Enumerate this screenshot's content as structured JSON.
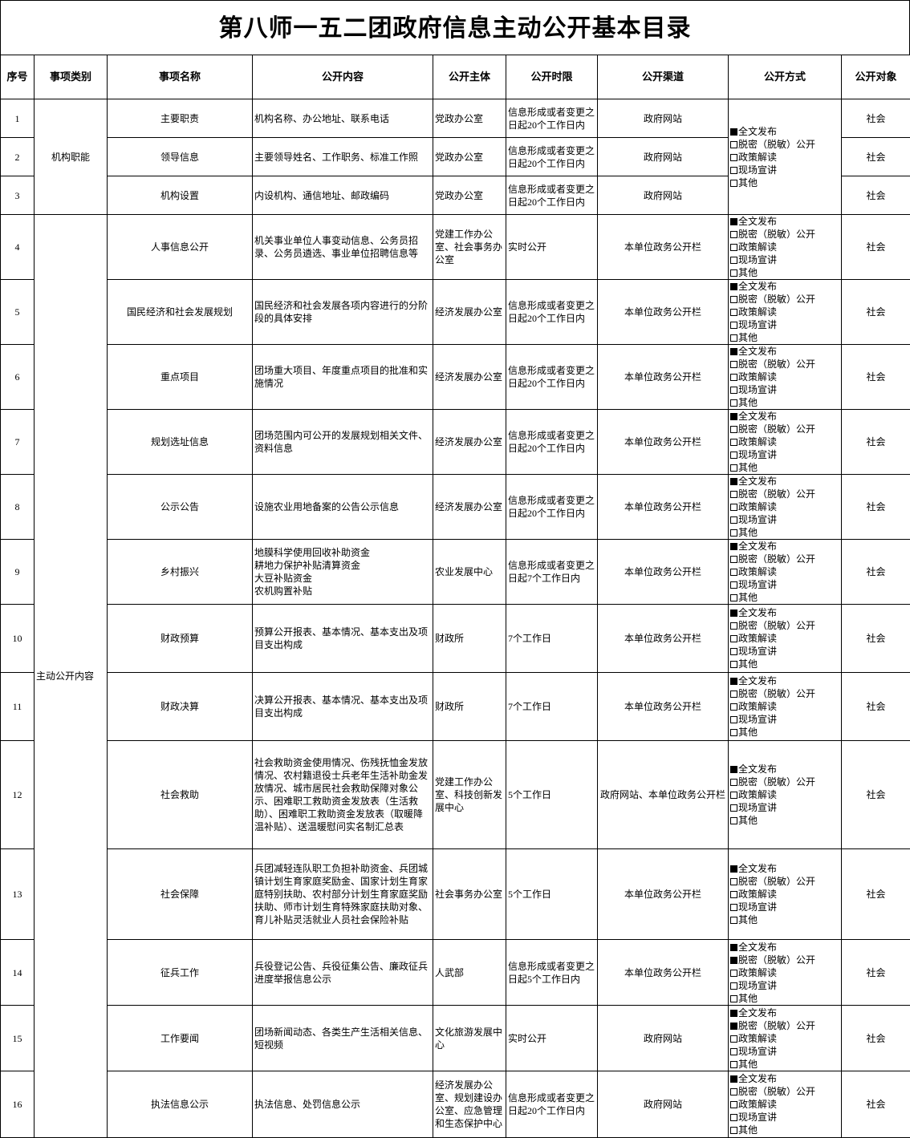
{
  "title": "第八师一五二团政府信息主动公开基本目录",
  "headers": [
    "序号",
    "事项类别",
    "事项名称",
    "公开内容",
    "公开主体",
    "公开时限",
    "公开渠道",
    "公开方式",
    "公开对象"
  ],
  "method_options": [
    "全文发布",
    "脱密（脱敏）公开",
    "政策解读",
    "现场宣讲",
    "其他"
  ],
  "categories": [
    {
      "label": "机构职能",
      "rows": 3
    },
    {
      "label": "主动公开内容",
      "rows": 13
    }
  ],
  "rows": [
    {
      "no": "1",
      "name": "主要职责",
      "content": "机构名称、办公地址、联系电话",
      "subject": "党政办公室",
      "limit": "信息形成或者变更之日起20个工作日内",
      "channel": "政府网站",
      "methods": [
        true,
        false,
        false,
        false,
        false
      ],
      "target": "社会"
    },
    {
      "no": "2",
      "name": "领导信息",
      "content": "主要领导姓名、工作职务、标准工作照",
      "subject": "党政办公室",
      "limit": "信息形成或者变更之日起20个工作日内",
      "channel": "政府网站",
      "methods": null,
      "target": "社会"
    },
    {
      "no": "3",
      "name": "机构设置",
      "content": "内设机构、通信地址、邮政编码",
      "subject": "党政办公室",
      "limit": "信息形成或者变更之日起20个工作日内",
      "channel": "政府网站",
      "methods": null,
      "target": "社会"
    },
    {
      "no": "4",
      "name": "人事信息公开",
      "content": "机关事业单位人事变动信息、公务员招录、公务员遴选、事业单位招聘信息等",
      "subject": "党建工作办公室、社会事务办公室",
      "limit": "实时公开",
      "channel": "本单位政务公开栏",
      "methods": [
        true,
        false,
        false,
        false,
        false
      ],
      "target": "社会"
    },
    {
      "no": "5",
      "name": "国民经济和社会发展规划",
      "content": "国民经济和社会发展各项内容进行的分阶段的具体安排",
      "subject": "经济发展办公室",
      "limit": "信息形成或者变更之日起20个工作日内",
      "channel": "本单位政务公开栏",
      "methods": [
        true,
        false,
        false,
        false,
        false
      ],
      "target": "社会"
    },
    {
      "no": "6",
      "name": "重点项目",
      "content": "团场重大项目、年度重点项目的批准和实施情况",
      "subject": "经济发展办公室",
      "limit": "信息形成或者变更之日起20个工作日内",
      "channel": "本单位政务公开栏",
      "methods": [
        true,
        false,
        false,
        false,
        false
      ],
      "target": "社会"
    },
    {
      "no": "7",
      "name": "规划选址信息",
      "content": "团场范围内可公开的发展规划相关文件、资料信息",
      "subject": "经济发展办公室",
      "limit": "信息形成或者变更之日起20个工作日内",
      "channel": "本单位政务公开栏",
      "methods": [
        true,
        false,
        false,
        false,
        false
      ],
      "target": "社会"
    },
    {
      "no": "8",
      "name": "公示公告",
      "content": "设施农业用地备案的公告公示信息",
      "subject": "经济发展办公室",
      "limit": "信息形成或者变更之日起20个工作日内",
      "channel": "本单位政务公开栏",
      "methods": [
        true,
        false,
        false,
        false,
        false
      ],
      "target": "社会"
    },
    {
      "no": "9",
      "name": "乡村振兴",
      "content": "地膜科学使用回收补助资金\n耕地力保护补贴清算资金\n大豆补贴资金\n农机购置补贴",
      "subject": "农业发展中心",
      "limit": "信息形成或者变更之日起7个工作日内",
      "channel": "本单位政务公开栏",
      "methods": [
        true,
        false,
        false,
        false,
        false
      ],
      "target": "社会"
    },
    {
      "no": "10",
      "name": "财政预算",
      "content": "预算公开报表、基本情况、基本支出及项目支出构成",
      "subject": "财政所",
      "limit": "7个工作日",
      "channel": "本单位政务公开栏",
      "methods": [
        true,
        false,
        false,
        false,
        false
      ],
      "target": "社会"
    },
    {
      "no": "11",
      "name": "财政决算",
      "content": "决算公开报表、基本情况、基本支出及项目支出构成",
      "subject": "财政所",
      "limit": "7个工作日",
      "channel": "本单位政务公开栏",
      "methods": [
        true,
        false,
        false,
        false,
        false
      ],
      "target": "社会"
    },
    {
      "no": "12",
      "name": "社会救助",
      "content": "社会救助资金使用情况、伤残抚恤金发放情况、农村籍退役士兵老年生活补助金发放情况、城市居民社会救助保障对象公示、困难职工救助资金发放表（生活救助）、困难职工救助资金发放表（取暖降温补贴）、送温暖慰问实名制汇总表",
      "subject": "党建工作办公室、科技创新发展中心",
      "limit": "5个工作日",
      "channel": "政府网站、本单位政务公开栏",
      "methods": [
        true,
        false,
        false,
        false,
        false
      ],
      "target": "社会"
    },
    {
      "no": "13",
      "name": "社会保障",
      "content": "兵团减轻连队职工负担补助资金、兵团城镇计划生育家庭奖励金、国家计划生育家庭特别扶助、农村部分计划生育家庭奖励扶助、师市计划生育特殊家庭扶助对象、育儿补贴灵活就业人员社会保险补贴",
      "subject": "社会事务办公室",
      "limit": "5个工作日",
      "channel": "本单位政务公开栏",
      "methods": [
        true,
        false,
        false,
        false,
        false
      ],
      "target": "社会"
    },
    {
      "no": "14",
      "name": "征兵工作",
      "content": "兵役登记公告、兵役征集公告、廉政征兵进度举报信息公示",
      "subject": "人武部",
      "limit": "信息形成或者变更之日起5个工作日内",
      "channel": "本单位政务公开栏",
      "methods": [
        true,
        true,
        false,
        false,
        false
      ],
      "target": "社会"
    },
    {
      "no": "15",
      "name": "工作要闻",
      "content": "团场新闻动态、各类生产生活相关信息、短视频",
      "subject": "文化旅游发展中心",
      "limit": "实时公开",
      "channel": "政府网站",
      "methods": [
        true,
        true,
        false,
        false,
        false
      ],
      "target": "社会"
    },
    {
      "no": "16",
      "name": "执法信息公示",
      "content": "执法信息、处罚信息公示",
      "subject": "经济发展办公室、规划建设办公室、应急管理和生态保护中心",
      "limit": "信息形成或者变更之日起20个工作日内",
      "channel": "政府网站",
      "methods": [
        true,
        false,
        false,
        false,
        false
      ],
      "target": "社会"
    }
  ]
}
